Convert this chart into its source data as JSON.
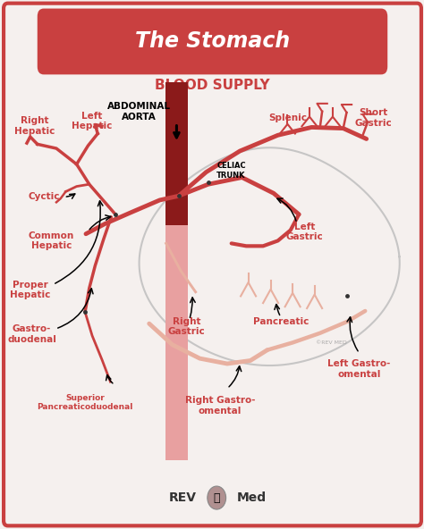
{
  "bg_color": "#f5f0ee",
  "border_color": "#c94040",
  "title_banner_color": "#c94040",
  "title_text": "The Stomach",
  "subtitle_text": "BLOOD SUPPLY",
  "title_color": "#ffffff",
  "subtitle_color": "#c94040",
  "aorta_color": "#8b1a1a",
  "aorta_light_color": "#e8a0a0",
  "vessel_color_dark": "#c94040",
  "vessel_color_light": "#e8b0a0",
  "stomach_outline_color": "#bbbbbb",
  "text_color": "#c94040",
  "arrow_color": "#222222",
  "footer_text": "REV",
  "footer_med": "Med",
  "watermark": "©REV MED"
}
